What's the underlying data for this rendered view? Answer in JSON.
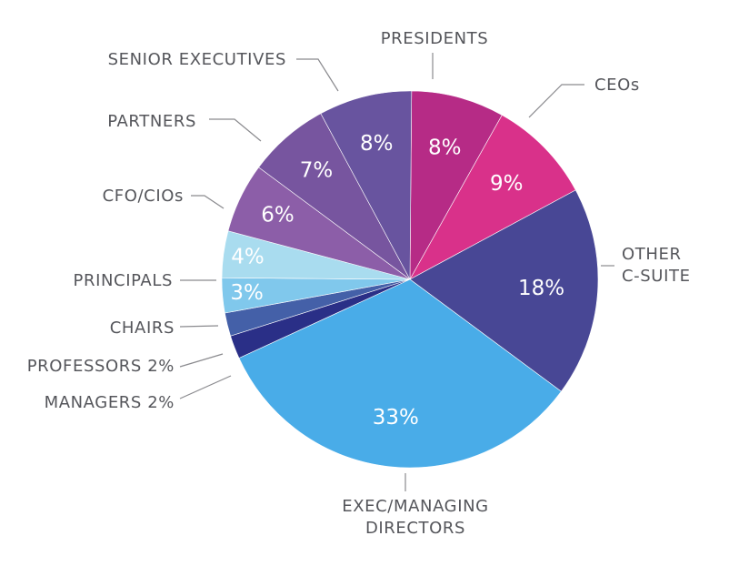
{
  "chart_data": {
    "type": "pie",
    "title": "",
    "slices": [
      {
        "label": "PRESIDENTS",
        "value": 8,
        "display": "8%",
        "color": "#b62b86"
      },
      {
        "label": "CEOs",
        "value": 9,
        "display": "9%",
        "color": "#d9318a"
      },
      {
        "label": "OTHER\nC-SUITE",
        "value": 18,
        "display": "18%",
        "color": "#484795"
      },
      {
        "label": "EXEC/MANAGING\nDIRECTORS",
        "value": 33,
        "display": "33%",
        "color": "#49ace8"
      },
      {
        "label": "MANAGERS 2%",
        "value": 2,
        "display": "",
        "color": "#2a2f87"
      },
      {
        "label": "PROFESSORS 2%",
        "value": 2,
        "display": "",
        "color": "#4460a8"
      },
      {
        "label": "CHAIRS",
        "value": 3,
        "display": "3%",
        "color": "#80c8ec"
      },
      {
        "label": "PRINCIPALS",
        "value": 4,
        "display": "4%",
        "color": "#a9dcef"
      },
      {
        "label": "CFO/CIOs",
        "value": 6,
        "display": "6%",
        "color": "#8c5ea8"
      },
      {
        "label": "PARTNERS",
        "value": 7,
        "display": "7%",
        "color": "#77559f"
      },
      {
        "label": "SENIOR EXECUTIVES",
        "value": 8,
        "display": "8%",
        "color": "#68549f"
      }
    ]
  }
}
